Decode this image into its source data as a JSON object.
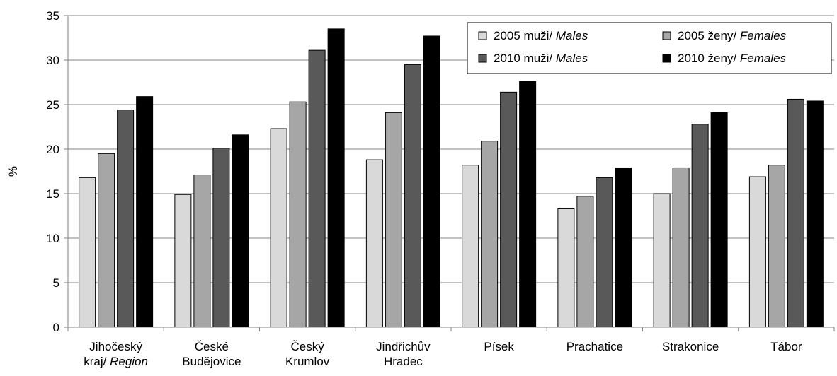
{
  "chart_data": {
    "type": "bar",
    "title": "",
    "xlabel": "",
    "ylabel": "%",
    "ylim": [
      0,
      35
    ],
    "yticks": [
      0,
      5,
      10,
      15,
      20,
      25,
      30,
      35
    ],
    "grid": true,
    "legend_position": "top-right",
    "categories": [
      [
        "Jihočeský",
        "kraj/ Region"
      ],
      [
        "České",
        "Budějovice"
      ],
      [
        "Český",
        "Krumlov"
      ],
      [
        "Jindřichův",
        "Hradec"
      ],
      [
        "Písek"
      ],
      [
        "Prachatice"
      ],
      [
        "Strakonice"
      ],
      [
        "Tábor"
      ]
    ],
    "category_label_italic": [
      [
        false,
        true
      ],
      [
        false,
        false
      ],
      [
        false,
        false
      ],
      [
        false,
        false
      ],
      [
        false
      ],
      [
        false
      ],
      [
        false
      ],
      [
        false
      ]
    ],
    "series": [
      {
        "name": "2005 muži/ ",
        "name_italic": "Males",
        "color": "#d9d9d9",
        "values": [
          16.8,
          14.9,
          22.3,
          18.8,
          18.2,
          13.3,
          15.0,
          16.9
        ]
      },
      {
        "name": "2005 ženy/ ",
        "name_italic": "Females",
        "color": "#a6a6a6",
        "values": [
          19.5,
          17.1,
          25.3,
          24.1,
          20.9,
          14.7,
          17.9,
          18.2
        ]
      },
      {
        "name": "2010 muži/ ",
        "name_italic": "Males",
        "color": "#595959",
        "values": [
          24.4,
          20.1,
          31.1,
          29.5,
          26.4,
          16.8,
          22.8,
          25.6
        ]
      },
      {
        "name": "2010 ženy/ ",
        "name_italic": "Females",
        "color": "#000000",
        "values": [
          25.9,
          21.6,
          33.5,
          32.7,
          27.6,
          17.9,
          24.1,
          25.4
        ]
      }
    ]
  }
}
